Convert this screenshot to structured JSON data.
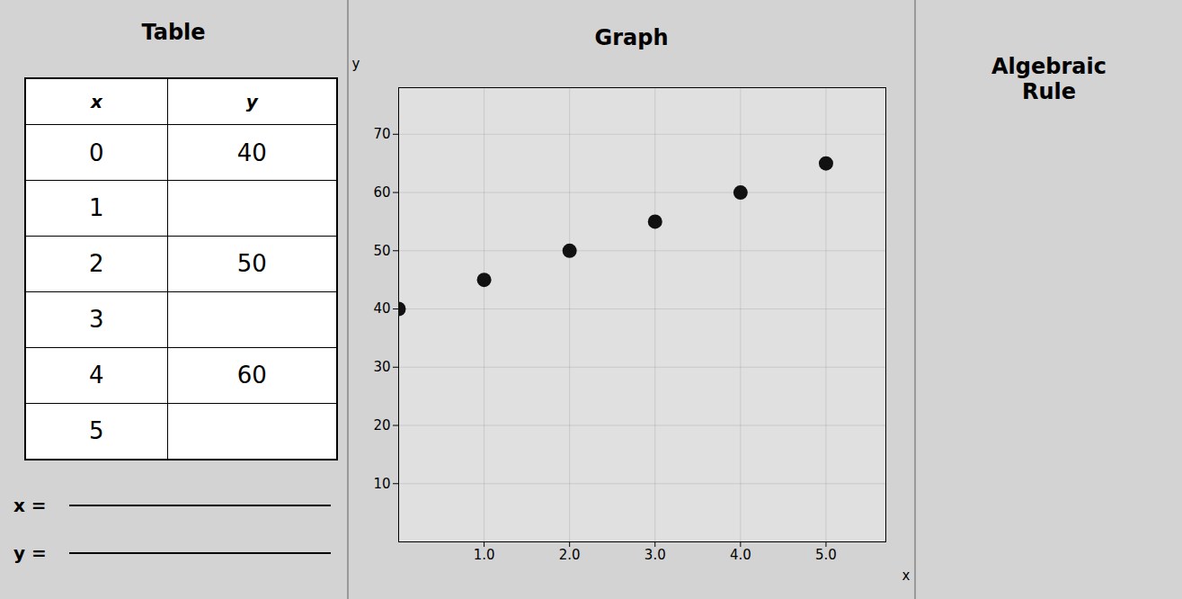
{
  "chart_data": [
    {
      "type": "table",
      "title": "Table",
      "columns": [
        "x",
        "y"
      ],
      "x": [
        0,
        1,
        2,
        3,
        4,
        5
      ],
      "values": [
        40,
        null,
        50,
        null,
        60,
        null
      ],
      "annotations": [
        "x =",
        "y ="
      ]
    },
    {
      "type": "scatter",
      "title": "Graph",
      "x": [
        0,
        1,
        2,
        3,
        4,
        5
      ],
      "values": [
        40,
        45,
        50,
        55,
        60,
        65
      ],
      "x_label": "x",
      "y_label": "y",
      "color": "#111111",
      "xlim": [
        0,
        5.7
      ],
      "ylim": [
        0,
        78
      ],
      "xticks": [
        1,
        2,
        3,
        4,
        5
      ],
      "yticks": [
        10,
        20,
        30,
        40,
        50,
        60,
        70
      ],
      "grid": true
    },
    {
      "type": "text",
      "title": "Algebraic\nRule"
    }
  ]
}
